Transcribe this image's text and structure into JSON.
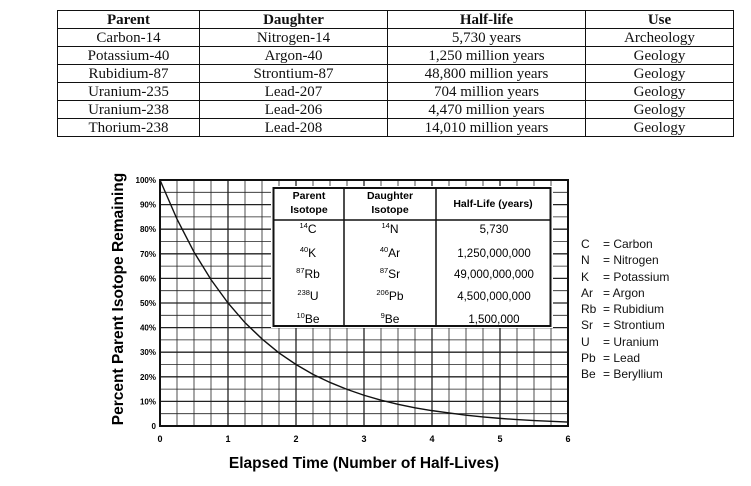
{
  "decay_table": {
    "headers": [
      "Parent",
      "Daughter",
      "Half-life",
      "Use"
    ],
    "rows": [
      [
        "Carbon-14",
        "Nitrogen-14",
        "5,730 years",
        "Archeology"
      ],
      [
        "Potassium-40",
        "Argon-40",
        "1,250 million years",
        "Geology"
      ],
      [
        "Rubidium-87",
        "Strontium-87",
        "48,800 million years",
        "Geology"
      ],
      [
        "Uranium-235",
        "Lead-207",
        "704 million years",
        "Geology"
      ],
      [
        "Uranium-238",
        "Lead-206",
        "4,470 million years",
        "Geology"
      ],
      [
        "Thorium-238",
        "Lead-208",
        "14,010 million years",
        "Geology"
      ]
    ]
  },
  "chart_data": {
    "type": "line",
    "xlabel": "Elapsed Time (Number of Half-Lives)",
    "ylabel": "Percent Parent Isotope Remaining",
    "xlim": [
      0,
      6
    ],
    "ylim": [
      0,
      100
    ],
    "x_ticks": [
      "0",
      "1",
      "2",
      "3",
      "4",
      "5",
      "6"
    ],
    "y_ticks": [
      "0",
      "10%",
      "20%",
      "30%",
      "40%",
      "50%",
      "60%",
      "70%",
      "80%",
      "90%",
      "100%"
    ],
    "grid": true,
    "series": [
      {
        "x": [
          0,
          0.25,
          0.5,
          0.75,
          1,
          1.25,
          1.5,
          1.75,
          2,
          2.25,
          2.5,
          2.75,
          3,
          3.25,
          3.5,
          3.75,
          4,
          4.25,
          4.5,
          4.75,
          5,
          5.25,
          5.5,
          5.75,
          6
        ],
        "values": [
          100,
          84.1,
          70.7,
          59.5,
          50,
          42.0,
          35.4,
          29.7,
          25,
          21.0,
          17.7,
          14.9,
          12.5,
          10.5,
          8.8,
          7.4,
          6.25,
          5.3,
          4.4,
          3.7,
          3.1,
          2.6,
          2.2,
          1.9,
          1.6
        ]
      }
    ]
  },
  "inset_table": {
    "headers": [
      {
        "line1": "Parent",
        "line2": "Isotope"
      },
      {
        "line1": "Daughter",
        "line2": "Isotope"
      },
      {
        "line1": "Half-Life (years)",
        "line2": ""
      }
    ],
    "rows": [
      {
        "parent_mass": "14",
        "parent_sym": "C",
        "daughter_mass": "14",
        "daughter_sym": "N",
        "half_life": "5,730"
      },
      {
        "parent_mass": "40",
        "parent_sym": "K",
        "daughter_mass": "40",
        "daughter_sym": "Ar",
        "half_life": "1,250,000,000"
      },
      {
        "parent_mass": "87",
        "parent_sym": "Rb",
        "daughter_mass": "87",
        "daughter_sym": "Sr",
        "half_life": "49,000,000,000"
      },
      {
        "parent_mass": "238",
        "parent_sym": "U",
        "daughter_mass": "206",
        "daughter_sym": "Pb",
        "half_life": "4,500,000,000"
      },
      {
        "parent_mass": "10",
        "parent_sym": "Be",
        "daughter_mass": "9",
        "daughter_sym": "Be",
        "half_life": "1,500,000"
      }
    ]
  },
  "element_legend": [
    {
      "symbol": "C",
      "name": "= Carbon"
    },
    {
      "symbol": "N",
      "name": "= Nitrogen"
    },
    {
      "symbol": "K",
      "name": "= Potassium"
    },
    {
      "symbol": "Ar",
      "name": "= Argon"
    },
    {
      "symbol": "Rb",
      "name": "= Rubidium"
    },
    {
      "symbol": "Sr",
      "name": "= Strontium"
    },
    {
      "symbol": "U",
      "name": "= Uranium"
    },
    {
      "symbol": "Pb",
      "name": "= Lead"
    },
    {
      "symbol": "Be",
      "name": "= Beryllium"
    }
  ]
}
